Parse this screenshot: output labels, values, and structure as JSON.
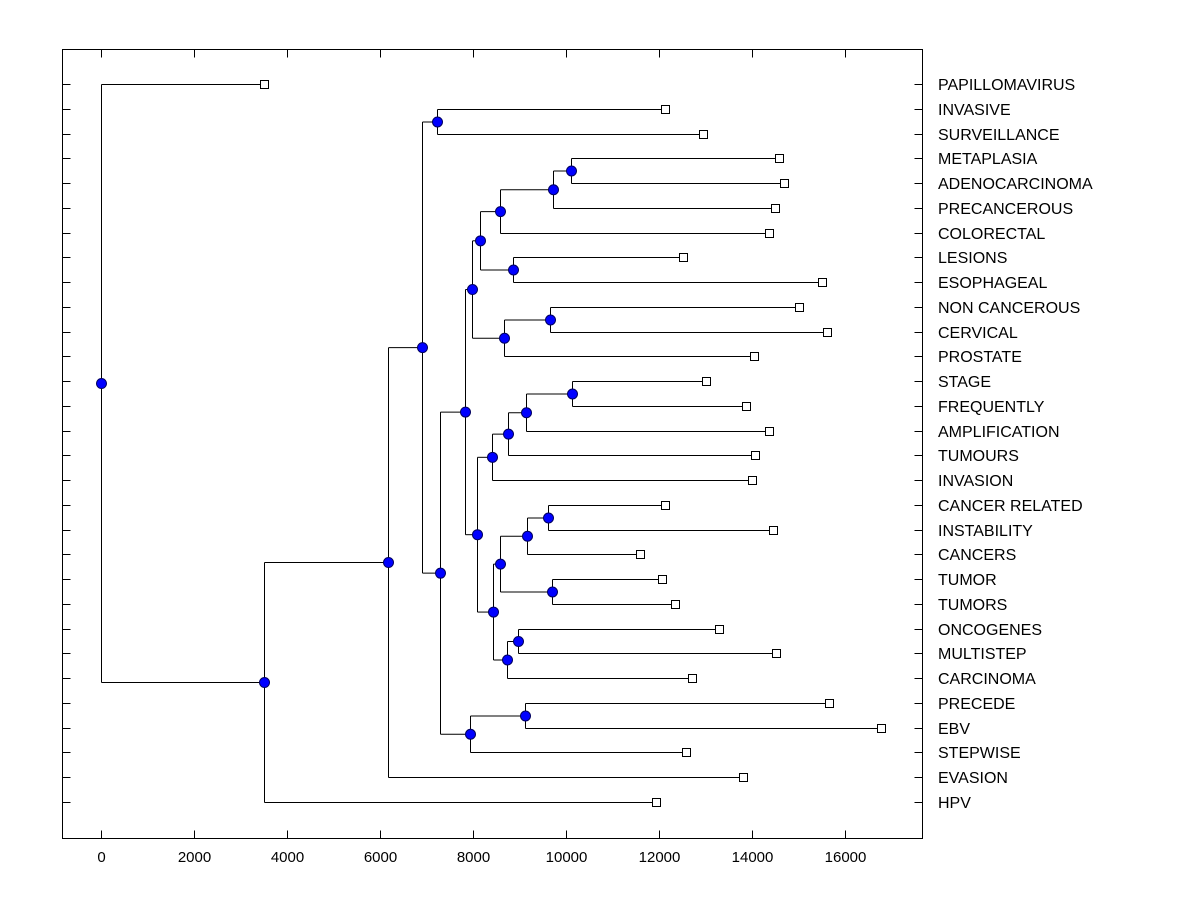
{
  "chart_data": {
    "type": "dendrogram",
    "title": "",
    "xlabel": "",
    "ylabel": "",
    "xlim": [
      -850,
      17600
    ],
    "x_ticks": [
      0,
      2000,
      4000,
      6000,
      8000,
      10000,
      12000,
      14000,
      16000
    ],
    "x_tick_labels": [
      "0",
      "2000",
      "4000",
      "6000",
      "8000",
      "10000",
      "12000",
      "14000",
      "16000"
    ],
    "grid": false,
    "leaf_marker": "open-square",
    "node_marker": "blue-circle",
    "node_color": "#0000ff",
    "leaves": [
      {
        "label": "PAPILLOMAVIRUS",
        "x": 3500
      },
      {
        "label": "INVASIVE",
        "x": 12120
      },
      {
        "label": "SURVEILLANCE",
        "x": 12950
      },
      {
        "label": "METAPLASIA",
        "x": 14590
      },
      {
        "label": "ADENOCARCINOMA",
        "x": 14690
      },
      {
        "label": "PRECANCEROUS",
        "x": 14500
      },
      {
        "label": "COLORECTAL",
        "x": 14370
      },
      {
        "label": "LESIONS",
        "x": 12520
      },
      {
        "label": "ESOPHAGEAL",
        "x": 15510
      },
      {
        "label": "NON CANCEROUS",
        "x": 15000
      },
      {
        "label": "CERVICAL",
        "x": 15620
      },
      {
        "label": "PROSTATE",
        "x": 14050
      },
      {
        "label": "STAGE",
        "x": 13000
      },
      {
        "label": "FREQUENTLY",
        "x": 13880
      },
      {
        "label": "AMPLIFICATION",
        "x": 14370
      },
      {
        "label": "TUMOURS",
        "x": 14070
      },
      {
        "label": "INVASION",
        "x": 14010
      },
      {
        "label": "CANCER RELATED",
        "x": 12120
      },
      {
        "label": "INSTABILITY",
        "x": 14460
      },
      {
        "label": "CANCERS",
        "x": 11600
      },
      {
        "label": "TUMOR",
        "x": 12070
      },
      {
        "label": "TUMORS",
        "x": 12350
      },
      {
        "label": "ONCOGENES",
        "x": 13280
      },
      {
        "label": "MULTISTEP",
        "x": 14520
      },
      {
        "label": "CARCINOMA",
        "x": 12700
      },
      {
        "label": "PRECEDE",
        "x": 15660
      },
      {
        "label": "EBV",
        "x": 16780
      },
      {
        "label": "STEPWISE",
        "x": 12570
      },
      {
        "label": "EVASION",
        "x": 13810
      },
      {
        "label": "HPV",
        "x": 11940
      }
    ],
    "nodes": [
      {
        "id": "root",
        "x": 0,
        "children": [
          "L0",
          "n_ab"
        ]
      },
      {
        "id": "n_ab",
        "x": 3500,
        "children": [
          "n_c",
          "L29"
        ]
      },
      {
        "id": "n_c",
        "x": 6170,
        "children": [
          "n_d",
          "L28"
        ]
      },
      {
        "id": "n_d",
        "x": 6900,
        "children": [
          "n_e",
          "n_f"
        ]
      },
      {
        "id": "n_e",
        "x": 7220,
        "children": [
          "L1",
          "L2"
        ]
      },
      {
        "id": "n_f",
        "x": 7300,
        "children": [
          "n_g",
          "n_bb"
        ]
      },
      {
        "id": "n_g",
        "x": 7820,
        "children": [
          "n_h",
          "n_p"
        ]
      },
      {
        "id": "n_h",
        "x": 7970,
        "children": [
          "n_i",
          "n_n"
        ]
      },
      {
        "id": "n_i",
        "x": 8160,
        "children": [
          "n_j",
          "n_m"
        ]
      },
      {
        "id": "n_j",
        "x": 8590,
        "children": [
          "n_k",
          "L6"
        ]
      },
      {
        "id": "n_k",
        "x": 9730,
        "children": [
          "n_l",
          "L5"
        ]
      },
      {
        "id": "n_l",
        "x": 10100,
        "children": [
          "L3",
          "L4"
        ]
      },
      {
        "id": "n_m",
        "x": 8870,
        "children": [
          "L7",
          "L8"
        ]
      },
      {
        "id": "n_n",
        "x": 8660,
        "children": [
          "n_o",
          "L11"
        ]
      },
      {
        "id": "n_o",
        "x": 9650,
        "children": [
          "L9",
          "L10"
        ]
      },
      {
        "id": "n_p",
        "x": 8080,
        "children": [
          "n_q",
          "n_u"
        ]
      },
      {
        "id": "n_q",
        "x": 8400,
        "children": [
          "n_r",
          "L16"
        ]
      },
      {
        "id": "n_r",
        "x": 8760,
        "children": [
          "n_s",
          "L15"
        ]
      },
      {
        "id": "n_s",
        "x": 9150,
        "children": [
          "n_t",
          "L14"
        ]
      },
      {
        "id": "n_t",
        "x": 10120,
        "children": [
          "L12",
          "L13"
        ]
      },
      {
        "id": "n_u",
        "x": 8420,
        "children": [
          "n_v",
          "n_z"
        ]
      },
      {
        "id": "n_v",
        "x": 8570,
        "children": [
          "n_w",
          "n_y"
        ]
      },
      {
        "id": "n_w",
        "x": 9170,
        "children": [
          "n_x",
          "L19"
        ]
      },
      {
        "id": "n_x",
        "x": 9620,
        "children": [
          "L17",
          "L18"
        ]
      },
      {
        "id": "n_y",
        "x": 9690,
        "children": [
          "L20",
          "L21"
        ]
      },
      {
        "id": "n_z",
        "x": 8740,
        "children": [
          "n_aa",
          "L24"
        ]
      },
      {
        "id": "n_aa",
        "x": 8960,
        "children": [
          "L22",
          "L23"
        ]
      },
      {
        "id": "n_bb",
        "x": 7930,
        "children": [
          "n_cc",
          "L27"
        ]
      },
      {
        "id": "n_cc",
        "x": 9110,
        "children": [
          "L25",
          "L26"
        ]
      }
    ]
  }
}
